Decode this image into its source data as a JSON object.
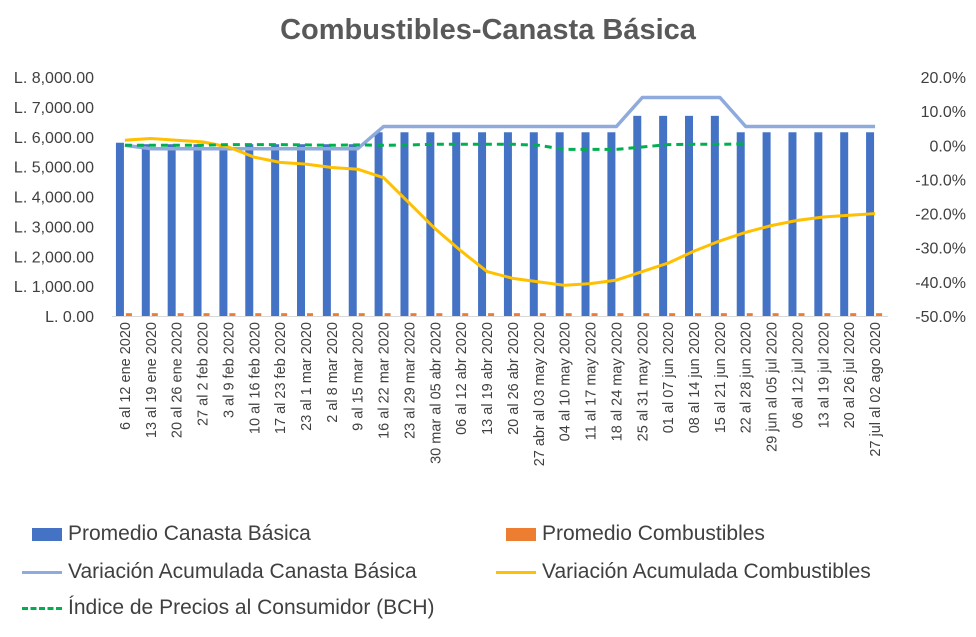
{
  "chart_data": {
    "type": "bar",
    "title": "Combustibles-Canasta Básica",
    "categories": [
      "6 al 12 ene 2020",
      "13 al 19 ene 2020",
      "20 al 26 ene 2020",
      "27 al 2 feb 2020",
      "3 al 9 feb 2020",
      "10 al 16 feb 2020",
      "17 al 23 feb 2020",
      "23 al 1 mar 2020",
      "2 al 8 mar 2020",
      "9 al 15 mar 2020",
      "16 al 22 mar 2020",
      "23 al 29 mar 2020",
      "30 mar al 05 abr 2020",
      "06 al 12 abr 2020",
      "13 al 19 abr 2020",
      "20 al 26 abr 2020",
      "27 abr al 03 may 2020",
      "04 al 10 may 2020",
      "11 al 17 may 2020",
      "18 al 24 may 2020",
      "25 al 31 may 2020",
      "01 al 07 jun 2020",
      "08 al 14 jun 2020",
      "15 al 21 jun 2020",
      "22 al 28 jun 2020",
      "29 jun al 05 jul 2020",
      "06 al 12 jul 2020",
      "13 al 19 jul 2020",
      "20 al 26 jul 2020",
      "27 jul al 02 ago 2020"
    ],
    "y_left": {
      "ylim": [
        0,
        8000
      ],
      "ticks": [
        0,
        1000,
        2000,
        3000,
        4000,
        5000,
        6000,
        7000,
        8000
      ],
      "tick_labels": [
        "L. 0.00",
        "L. 1,000.00",
        "L. 2,000.00",
        "L. 3,000.00",
        "L. 4,000.00",
        "L. 5,000.00",
        "L. 6,000.00",
        "L. 7,000.00",
        "L. 8,000.00"
      ]
    },
    "y_right": {
      "ylim": [
        -0.5,
        0.2
      ],
      "ticks": [
        -0.5,
        -0.4,
        -0.3,
        -0.2,
        -0.1,
        0,
        0.1,
        0.2
      ],
      "tick_labels": [
        "-50.0%",
        "-40.0%",
        "-30.0%",
        "-20.0%",
        "-10.0%",
        "0.0%",
        "10.0%",
        "20.0%"
      ]
    },
    "series": [
      {
        "name": "Promedio Canasta Básica",
        "kind": "bar",
        "axis": "left",
        "color": "#4472c4",
        "values": [
          5800,
          5750,
          5750,
          5750,
          5750,
          5750,
          5750,
          5750,
          5750,
          5750,
          6150,
          6150,
          6150,
          6150,
          6150,
          6150,
          6150,
          6150,
          6150,
          6150,
          6700,
          6700,
          6700,
          6700,
          6150,
          6150,
          6150,
          6150,
          6150,
          6150
        ]
      },
      {
        "name": "Promedio Combustibles",
        "kind": "bar",
        "axis": "left",
        "color": "#ed7d31",
        "values": [
          95,
          95,
          95,
          95,
          95,
          95,
          95,
          95,
          95,
          95,
          95,
          95,
          95,
          95,
          95,
          95,
          95,
          95,
          95,
          95,
          95,
          95,
          95,
          95,
          95,
          95,
          95,
          95,
          95,
          95
        ]
      },
      {
        "name": "Variación Acumulada Canasta Básica",
        "kind": "line",
        "axis": "right",
        "color": "#8faadc",
        "values": [
          0.0,
          -0.01,
          -0.01,
          -0.01,
          -0.01,
          -0.01,
          -0.01,
          -0.01,
          -0.01,
          -0.01,
          0.055,
          0.055,
          0.055,
          0.055,
          0.055,
          0.055,
          0.055,
          0.055,
          0.055,
          0.055,
          0.14,
          0.14,
          0.14,
          0.14,
          0.055,
          0.055,
          0.055,
          0.055,
          0.055,
          0.055
        ]
      },
      {
        "name": "Variación Acumulada Combustibles",
        "kind": "line",
        "axis": "right",
        "color": "#ffc000",
        "values": [
          0.015,
          0.02,
          0.015,
          0.01,
          -0.005,
          -0.035,
          -0.05,
          -0.055,
          -0.065,
          -0.07,
          -0.095,
          -0.17,
          -0.245,
          -0.31,
          -0.37,
          -0.39,
          -0.4,
          -0.41,
          -0.405,
          -0.395,
          -0.37,
          -0.345,
          -0.31,
          -0.28,
          -0.255,
          -0.235,
          -0.22,
          -0.21,
          -0.205,
          -0.2
        ]
      },
      {
        "name": "Índice de Precios al Consumidor (BCH)",
        "kind": "dashed-line",
        "axis": "right",
        "color": "#00b050",
        "values": [
          0.0,
          0.0,
          0.0,
          0.0,
          0.002,
          0.002,
          0.002,
          0.001,
          0.0,
          0.001,
          0.0,
          0.001,
          0.003,
          0.003,
          0.003,
          0.003,
          0.0,
          -0.012,
          -0.012,
          -0.012,
          -0.005,
          0.002,
          0.003,
          0.003,
          0.004,
          null,
          null,
          null,
          null,
          null
        ]
      }
    ],
    "grid": false,
    "legend_position": "bottom"
  }
}
